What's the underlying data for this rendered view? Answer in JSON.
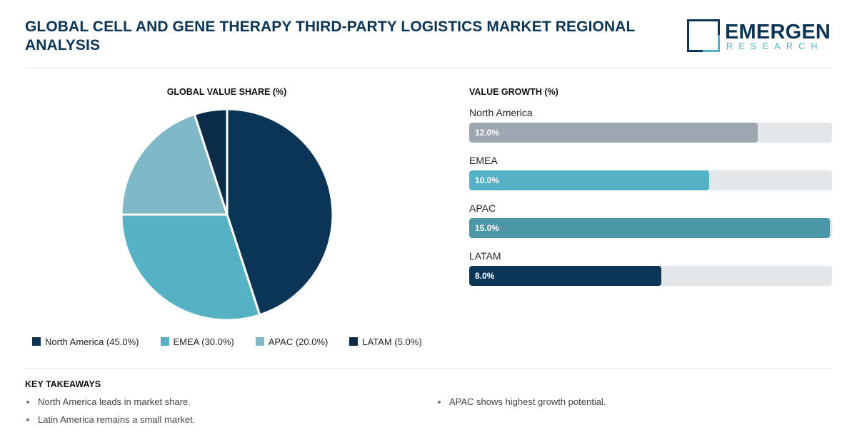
{
  "header": {
    "title": "GLOBAL CELL AND GENE THERAPY THIRD-PARTY LOGISTICS MARKET REGIONAL ANALYSIS",
    "logo_name": "EMERGEN",
    "logo_sub": "RESEARCH"
  },
  "colors": {
    "brand_navy": "#0b3556",
    "brand_teal": "#55b2c4"
  },
  "chart_data": [
    {
      "type": "pie",
      "title": "GLOBAL VALUE SHARE (%)",
      "categories": [
        "North America",
        "EMEA",
        "APAC",
        "LATAM"
      ],
      "values": [
        45.0,
        30.0,
        20.0,
        5.0
      ],
      "colors": [
        "#0b3556",
        "#55b2c4",
        "#7fb8c6",
        "#0a2c47"
      ],
      "legend_labels": [
        "North America (45.0%)",
        "EMEA (30.0%)",
        "APAC (20.0%)",
        "LATAM (5.0%)"
      ],
      "legend_position": "bottom"
    },
    {
      "type": "bar",
      "orientation": "horizontal",
      "title": "VALUE GROWTH (%)",
      "categories": [
        "North America",
        "EMEA",
        "APAC",
        "LATAM"
      ],
      "values": [
        12.0,
        10.0,
        15.0,
        8.0
      ],
      "value_labels": [
        "12.0%",
        "10.0%",
        "15.0%",
        "8.0%"
      ],
      "colors": [
        "#9ea7b1",
        "#55b2c4",
        "#4b97a7",
        "#0b3556"
      ],
      "xlim": [
        0,
        15.1
      ]
    }
  ],
  "takeaways": {
    "title": "KEY TAKEAWAYS",
    "items": [
      "North America leads in market share.",
      "APAC shows highest growth potential.",
      "Latin America remains a small market."
    ]
  }
}
